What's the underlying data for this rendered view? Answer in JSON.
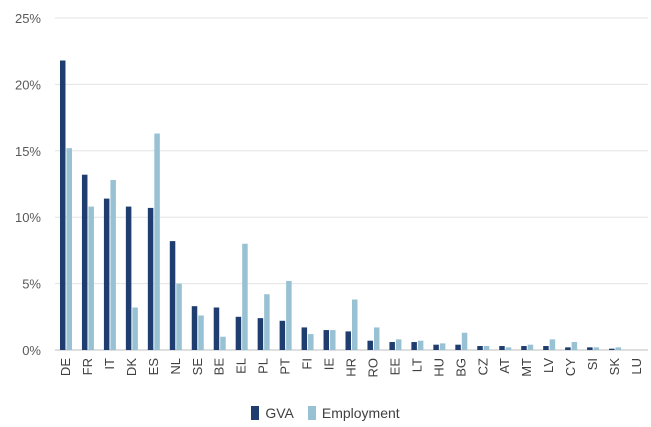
{
  "chart_data": {
    "type": "bar",
    "categories": [
      "DE",
      "FR",
      "IT",
      "DK",
      "ES",
      "NL",
      "SE",
      "BE",
      "EL",
      "PL",
      "PT",
      "FI",
      "IE",
      "HR",
      "RO",
      "EE",
      "LT",
      "HU",
      "BG",
      "CZ",
      "AT",
      "MT",
      "LV",
      "CY",
      "SI",
      "SK",
      "LU"
    ],
    "series": [
      {
        "name": "GVA",
        "color": "#1f3d6f",
        "values": [
          21.8,
          13.2,
          11.4,
          10.8,
          10.7,
          8.2,
          3.3,
          3.2,
          2.5,
          2.4,
          2.2,
          1.7,
          1.5,
          1.4,
          0.7,
          0.6,
          0.6,
          0.4,
          0.4,
          0.3,
          0.3,
          0.3,
          0.3,
          0.2,
          0.2,
          0.1,
          0.0
        ]
      },
      {
        "name": "Employment",
        "color": "#98c2d3",
        "values": [
          15.2,
          10.8,
          12.8,
          3.2,
          16.3,
          5.0,
          2.6,
          1.0,
          8.0,
          4.2,
          5.2,
          1.2,
          1.5,
          3.8,
          1.7,
          0.8,
          0.7,
          0.5,
          1.3,
          0.3,
          0.2,
          0.4,
          0.8,
          0.6,
          0.2,
          0.2,
          0.0
        ]
      }
    ],
    "y_ticks": [
      "0%",
      "5%",
      "10%",
      "15%",
      "20%",
      "25%"
    ],
    "y_tick_values": [
      0,
      5,
      10,
      15,
      20,
      25
    ],
    "ylim": [
      0,
      25
    ],
    "grid": true,
    "legend_position": "bottom"
  }
}
